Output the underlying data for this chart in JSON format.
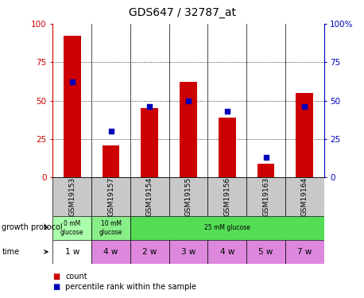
{
  "title": "GDS647 / 32787_at",
  "samples": [
    "GSM19153",
    "GSM19157",
    "GSM19154",
    "GSM19155",
    "GSM19156",
    "GSM19163",
    "GSM19164"
  ],
  "counts": [
    92,
    21,
    45,
    62,
    39,
    9,
    55
  ],
  "percentiles": [
    62,
    30,
    46,
    50,
    43,
    13,
    46
  ],
  "gp_labels": [
    "0 mM\nglucose",
    "10 mM\nglucose",
    "25 mM glucose"
  ],
  "gp_spans": [
    1,
    1,
    5
  ],
  "gp_colors": [
    "#aaffaa",
    "#88ee88",
    "#55dd55"
  ],
  "time_labels": [
    "1 w",
    "4 w",
    "2 w",
    "3 w",
    "4 w",
    "5 w",
    "7 w"
  ],
  "time_colors": [
    "#ffffff",
    "#dd88dd",
    "#dd88dd",
    "#dd88dd",
    "#dd88dd",
    "#dd88dd",
    "#dd88dd"
  ],
  "bar_color": "#cc0000",
  "dot_color": "#0000bb",
  "left_axis_color": "#cc0000",
  "right_axis_color": "#0000bb",
  "sample_bg_color": "#c8c8c8",
  "bg_color": "#ffffff",
  "ylim": [
    0,
    100
  ],
  "yticks": [
    0,
    25,
    50,
    75,
    100
  ]
}
